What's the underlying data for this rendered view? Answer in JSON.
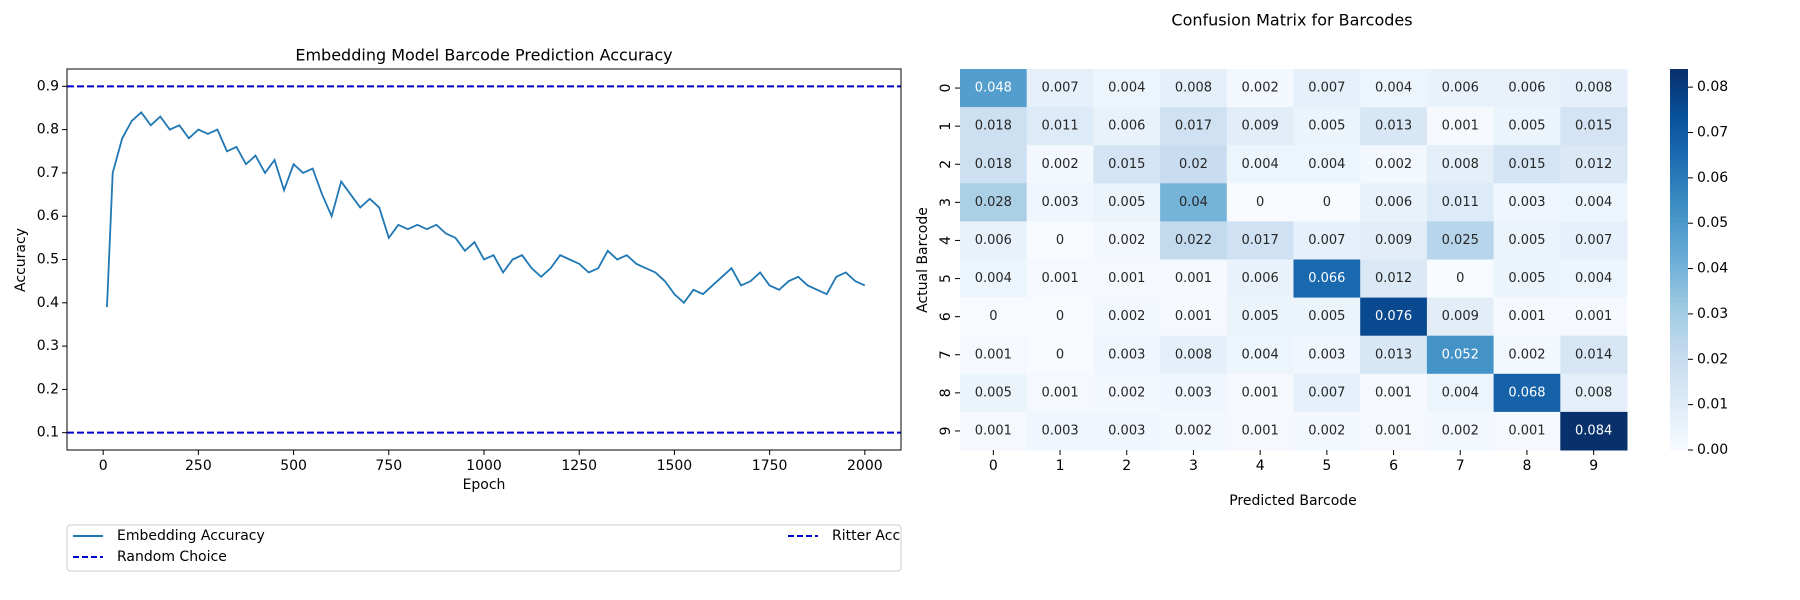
{
  "chart_data": [
    {
      "type": "line",
      "title": "Embedding Model Barcode Prediction Accuracy",
      "xlabel": "Epoch",
      "ylabel": "Accuracy",
      "x": [
        10,
        25,
        50,
        75,
        100,
        125,
        150,
        175,
        200,
        225,
        250,
        275,
        300,
        325,
        350,
        375,
        400,
        425,
        450,
        475,
        500,
        525,
        550,
        575,
        600,
        625,
        650,
        675,
        700,
        725,
        750,
        775,
        800,
        825,
        850,
        875,
        900,
        925,
        950,
        975,
        1000,
        1025,
        1050,
        1075,
        1100,
        1125,
        1150,
        1175,
        1200,
        1225,
        1250,
        1275,
        1300,
        1325,
        1350,
        1375,
        1400,
        1425,
        1450,
        1475,
        1500,
        1525,
        1550,
        1575,
        1600,
        1625,
        1650,
        1675,
        1700,
        1725,
        1750,
        1775,
        1800,
        1825,
        1850,
        1875,
        1900,
        1925,
        1950,
        1975,
        2000
      ],
      "series": [
        {
          "name": "Embedding Accuracy",
          "color": "#1f77b4",
          "values": [
            0.39,
            0.7,
            0.78,
            0.82,
            0.84,
            0.81,
            0.83,
            0.8,
            0.81,
            0.78,
            0.8,
            0.79,
            0.8,
            0.75,
            0.76,
            0.72,
            0.74,
            0.7,
            0.73,
            0.66,
            0.72,
            0.7,
            0.71,
            0.65,
            0.6,
            0.68,
            0.65,
            0.62,
            0.64,
            0.62,
            0.55,
            0.58,
            0.57,
            0.58,
            0.57,
            0.58,
            0.56,
            0.55,
            0.52,
            0.54,
            0.5,
            0.51,
            0.47,
            0.5,
            0.51,
            0.48,
            0.46,
            0.48,
            0.51,
            0.5,
            0.49,
            0.47,
            0.48,
            0.52,
            0.5,
            0.51,
            0.49,
            0.48,
            0.47,
            0.45,
            0.42,
            0.4,
            0.43,
            0.42,
            0.44,
            0.46,
            0.48,
            0.44,
            0.45,
            0.47,
            0.44,
            0.43,
            0.45,
            0.46,
            0.44,
            0.43,
            0.42,
            0.46,
            0.47,
            0.45,
            0.44
          ]
        }
      ],
      "hlines": [
        {
          "name": "Random Choice",
          "value": 0.1,
          "color": "#0000cc"
        },
        {
          "name": "Ritter Acc",
          "value": 0.9,
          "color": "#0000cc"
        }
      ],
      "xlim": [
        -95,
        2095
      ],
      "ylim": [
        0.06,
        0.94
      ],
      "xticks": [
        0,
        250,
        500,
        750,
        1000,
        1250,
        1500,
        1750,
        2000
      ],
      "yticks": [
        0.1,
        0.2,
        0.3,
        0.4,
        0.5,
        0.6,
        0.7,
        0.8,
        0.9
      ],
      "legend": "below"
    },
    {
      "type": "heatmap",
      "title": "Confusion Matrix for Barcodes",
      "xlabel": "Predicted Barcode",
      "ylabel": "Actual Barcode",
      "categories": [
        "0",
        "1",
        "2",
        "3",
        "4",
        "5",
        "6",
        "7",
        "8",
        "9"
      ],
      "rows": [
        "0",
        "1",
        "2",
        "3",
        "4",
        "5",
        "6",
        "7",
        "8",
        "9"
      ],
      "values": [
        [
          0.048,
          0.007,
          0.004,
          0.008,
          0.002,
          0.007,
          0.004,
          0.006,
          0.006,
          0.008
        ],
        [
          0.018,
          0.011,
          0.006,
          0.017,
          0.009,
          0.005,
          0.013,
          0.001,
          0.005,
          0.015
        ],
        [
          0.018,
          0.002,
          0.015,
          0.02,
          0.004,
          0.004,
          0.002,
          0.008,
          0.015,
          0.012
        ],
        [
          0.028,
          0.003,
          0.005,
          0.04,
          0,
          0,
          0.006,
          0.011,
          0.003,
          0.004
        ],
        [
          0.006,
          0,
          0.002,
          0.022,
          0.017,
          0.007,
          0.009,
          0.025,
          0.005,
          0.007
        ],
        [
          0.004,
          0.001,
          0.001,
          0.001,
          0.006,
          0.066,
          0.012,
          0,
          0.005,
          0.004
        ],
        [
          0,
          0,
          0.002,
          0.001,
          0.005,
          0.005,
          0.076,
          0.009,
          0.001,
          0.001
        ],
        [
          0.001,
          0,
          0.003,
          0.008,
          0.004,
          0.003,
          0.013,
          0.052,
          0.002,
          0.014
        ],
        [
          0.005,
          0.001,
          0.002,
          0.003,
          0.001,
          0.007,
          0.001,
          0.004,
          0.068,
          0.008
        ],
        [
          0.001,
          0.003,
          0.003,
          0.002,
          0.001,
          0.002,
          0.001,
          0.002,
          0.001,
          0.084
        ]
      ],
      "clim": [
        0,
        0.084
      ],
      "colormap": [
        "#f7fbff",
        "#deebf7",
        "#c6dbef",
        "#9ecae1",
        "#6baed6",
        "#4292c6",
        "#2171b5",
        "#08519c",
        "#08306b"
      ],
      "cticks": [
        {
          "value": 0,
          "label": "0.00"
        },
        {
          "value": 0.01,
          "label": "0.01"
        },
        {
          "value": 0.02,
          "label": "0.02"
        },
        {
          "value": 0.03,
          "label": "0.03"
        },
        {
          "value": 0.04,
          "label": "0.04"
        },
        {
          "value": 0.05,
          "label": "0.05"
        },
        {
          "value": 0.06,
          "label": "0.06"
        },
        {
          "value": 0.07,
          "label": "0.07"
        },
        {
          "value": 0.08,
          "label": "0.08"
        }
      ]
    }
  ]
}
